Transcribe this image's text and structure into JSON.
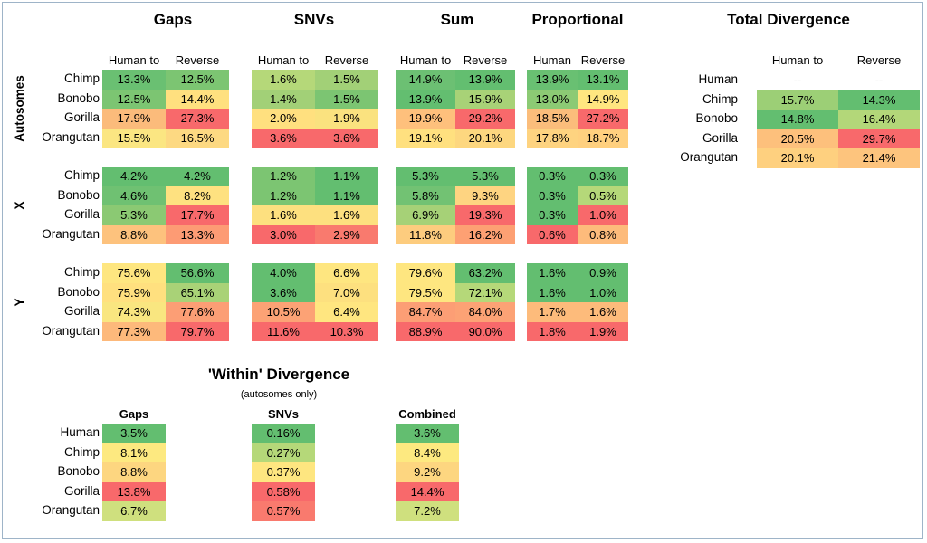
{
  "chart_data": {
    "type": "table",
    "main": {
      "titles": [
        "Gaps",
        "SNVs",
        "Sum",
        "Proportional"
      ],
      "column_headers": [
        [
          "Human to",
          "Reverse"
        ],
        [
          "Human to",
          "Reverse"
        ],
        [
          "Human to",
          "Reverse"
        ],
        [
          "Human",
          "Reverse"
        ]
      ],
      "sections": [
        {
          "label": "Autosomes",
          "rows": [
            {
              "species": "Chimp",
              "values": [
                [
                  "13.3%",
                  "12.5%"
                ],
                [
                  "1.6%",
                  "1.5%"
                ],
                [
                  "14.9%",
                  "13.9%"
                ],
                [
                  "13.9%",
                  "13.1%"
                ]
              ]
            },
            {
              "species": "Bonobo",
              "values": [
                [
                  "12.5%",
                  "14.4%"
                ],
                [
                  "1.4%",
                  "1.5%"
                ],
                [
                  "13.9%",
                  "15.9%"
                ],
                [
                  "13.0%",
                  "14.9%"
                ]
              ]
            },
            {
              "species": "Gorilla",
              "values": [
                [
                  "17.9%",
                  "27.3%"
                ],
                [
                  "2.0%",
                  "1.9%"
                ],
                [
                  "19.9%",
                  "29.2%"
                ],
                [
                  "18.5%",
                  "27.2%"
                ]
              ]
            },
            {
              "species": "Orangutan",
              "values": [
                [
                  "15.5%",
                  "16.5%"
                ],
                [
                  "3.6%",
                  "3.6%"
                ],
                [
                  "19.1%",
                  "20.1%"
                ],
                [
                  "17.8%",
                  "18.7%"
                ]
              ]
            }
          ],
          "colors": [
            [
              [
                "#6ac072",
                "#7cc572"
              ],
              [
                "#b5d879",
                "#a2d077"
              ],
              [
                "#6cc073",
                "#63be70"
              ],
              [
                "#69c072",
                "#63be70"
              ]
            ],
            [
              [
                "#7cc572",
                "#ffe07f"
              ],
              [
                "#a2d077",
                "#7cc572"
              ],
              [
                "#63be70",
                "#a8d277"
              ],
              [
                "#8cca74",
                "#ffe680"
              ]
            ],
            [
              [
                "#fbbb7b",
                "#f8696b"
              ],
              [
                "#ffe07f",
                "#fae27f"
              ],
              [
                "#fec07c",
                "#f8696b"
              ],
              [
                "#fbbd7b",
                "#f8696b"
              ]
            ],
            [
              [
                "#fbe682",
                "#fdd982"
              ],
              [
                "#f8696b",
                "#f8696b"
              ],
              [
                "#ffe07f",
                "#fdd77f"
              ],
              [
                "#fed380",
                "#ffd07f"
              ]
            ]
          ]
        },
        {
          "label": "X",
          "rows": [
            {
              "species": "Chimp",
              "values": [
                [
                  "4.2%",
                  "4.2%"
                ],
                [
                  "1.2%",
                  "1.1%"
                ],
                [
                  "5.3%",
                  "5.3%"
                ],
                [
                  "0.3%",
                  "0.3%"
                ]
              ]
            },
            {
              "species": "Bonobo",
              "values": [
                [
                  "4.6%",
                  "8.2%"
                ],
                [
                  "1.2%",
                  "1.1%"
                ],
                [
                  "5.8%",
                  "9.3%"
                ],
                [
                  "0.3%",
                  "0.5%"
                ]
              ]
            },
            {
              "species": "Gorilla",
              "values": [
                [
                  "5.3%",
                  "17.7%"
                ],
                [
                  "1.6%",
                  "1.6%"
                ],
                [
                  "6.9%",
                  "19.3%"
                ],
                [
                  "0.3%",
                  "1.0%"
                ]
              ]
            },
            {
              "species": "Orangutan",
              "values": [
                [
                  "8.8%",
                  "13.3%"
                ],
                [
                  "3.0%",
                  "2.9%"
                ],
                [
                  "11.8%",
                  "16.2%"
                ],
                [
                  "0.6%",
                  "0.8%"
                ]
              ]
            }
          ],
          "colors": [
            [
              [
                "#63be70",
                "#63be70"
              ],
              [
                "#7cc572",
                "#63be70"
              ],
              [
                "#63be70",
                "#63be70"
              ],
              [
                "#63be70",
                "#63be70"
              ]
            ],
            [
              [
                "#6fc172",
                "#fee180"
              ],
              [
                "#7cc572",
                "#63be70"
              ],
              [
                "#72c273",
                "#fed481"
              ],
              [
                "#63be70",
                "#b5d879"
              ]
            ],
            [
              [
                "#8bc973",
                "#f8696b"
              ],
              [
                "#fde07f",
                "#fde07f"
              ],
              [
                "#a6d177",
                "#f8696b"
              ],
              [
                "#63be70",
                "#f8696b"
              ]
            ],
            [
              [
                "#fdc27d",
                "#fd9b74"
              ],
              [
                "#f8696b",
                "#f97a6e"
              ],
              [
                "#fdcc7e",
                "#fda073"
              ],
              [
                "#f8696b",
                "#fdbb7b"
              ]
            ]
          ]
        },
        {
          "label": "Y",
          "rows": [
            {
              "species": "Chimp",
              "values": [
                [
                  "75.6%",
                  "56.6%"
                ],
                [
                  "4.0%",
                  "6.6%"
                ],
                [
                  "79.6%",
                  "63.2%"
                ],
                [
                  "1.6%",
                  "0.9%"
                ]
              ]
            },
            {
              "species": "Bonobo",
              "values": [
                [
                  "75.9%",
                  "65.1%"
                ],
                [
                  "3.6%",
                  "7.0%"
                ],
                [
                  "79.5%",
                  "72.1%"
                ],
                [
                  "1.6%",
                  "1.0%"
                ]
              ]
            },
            {
              "species": "Gorilla",
              "values": [
                [
                  "74.3%",
                  "77.6%"
                ],
                [
                  "10.5%",
                  "6.4%"
                ],
                [
                  "84.7%",
                  "84.0%"
                ],
                [
                  "1.7%",
                  "1.6%"
                ]
              ]
            },
            {
              "species": "Orangutan",
              "values": [
                [
                  "77.3%",
                  "79.7%"
                ],
                [
                  "11.6%",
                  "10.3%"
                ],
                [
                  "88.9%",
                  "90.0%"
                ],
                [
                  "1.8%",
                  "1.9%"
                ]
              ]
            }
          ],
          "colors": [
            [
              [
                "#fee680",
                "#63be70"
              ],
              [
                "#63be70",
                "#fee680"
              ],
              [
                "#fee680",
                "#63be70"
              ],
              [
                "#63be70",
                "#63be70"
              ]
            ],
            [
              [
                "#ffe07f",
                "#a9d277"
              ],
              [
                "#63be70",
                "#fde07f"
              ],
              [
                "#fee680",
                "#b5d879"
              ],
              [
                "#63be70",
                "#63be70"
              ]
            ],
            [
              [
                "#f9e680",
                "#fc9e75"
              ],
              [
                "#fca275",
                "#ffe680"
              ],
              [
                "#fc9e75",
                "#fca275"
              ],
              [
                "#fdbb7b",
                "#fdbb7b"
              ]
            ],
            [
              [
                "#fdb97b",
                "#f8696b"
              ],
              [
                "#f8696b",
                "#f8696b"
              ],
              [
                "#f8696b",
                "#f8696b"
              ],
              [
                "#f8696b",
                "#f8696b"
              ]
            ]
          ]
        }
      ]
    },
    "total_divergence": {
      "title": "Total Divergence",
      "column_headers": [
        "Human to",
        "Reverse"
      ],
      "rows": [
        {
          "species": "Human",
          "values": [
            "--",
            "--"
          ]
        },
        {
          "species": "Chimp",
          "values": [
            "15.7%",
            "14.3%"
          ]
        },
        {
          "species": "Bonobo",
          "values": [
            "14.8%",
            "16.4%"
          ]
        },
        {
          "species": "Gorilla",
          "values": [
            "20.5%",
            "29.7%"
          ]
        },
        {
          "species": "Orangutan",
          "values": [
            "20.1%",
            "21.4%"
          ]
        }
      ],
      "colors": [
        [
          null,
          null
        ],
        [
          "#9ccf76",
          "#63be70"
        ],
        [
          "#63be70",
          "#b3d779"
        ],
        [
          "#fdc07c",
          "#f8696b"
        ],
        [
          "#fed07f",
          "#fdc47d"
        ]
      ]
    },
    "within_divergence": {
      "title": "'Within' Divergence",
      "subtitle": "(autosomes only)",
      "columns": [
        "Gaps",
        "SNVs",
        "Combined"
      ],
      "rows": [
        {
          "species": "Human",
          "values": [
            "3.5%",
            "0.16%",
            "3.6%"
          ]
        },
        {
          "species": "Chimp",
          "values": [
            "8.1%",
            "0.27%",
            "8.4%"
          ]
        },
        {
          "species": "Bonobo",
          "values": [
            "8.8%",
            "0.37%",
            "9.2%"
          ]
        },
        {
          "species": "Gorilla",
          "values": [
            "13.8%",
            "0.58%",
            "14.4%"
          ]
        },
        {
          "species": "Orangutan",
          "values": [
            "6.7%",
            "0.57%",
            "7.2%"
          ]
        }
      ],
      "colors": [
        [
          "#63be70",
          "#63be70",
          "#63be70"
        ],
        [
          "#fde980",
          "#b5d879",
          "#fde980"
        ],
        [
          "#fdd680",
          "#fee680",
          "#fdd680"
        ],
        [
          "#f8696b",
          "#f8696b",
          "#f8696b"
        ],
        [
          "#cfe07e",
          "#f97a6e",
          "#cfe07e"
        ]
      ]
    }
  }
}
